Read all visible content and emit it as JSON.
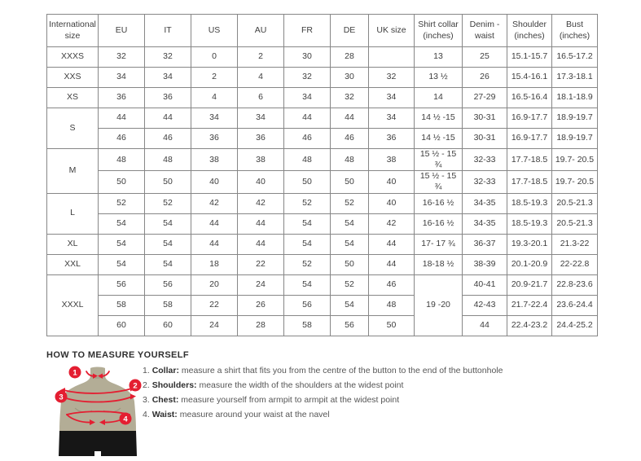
{
  "table": {
    "headers": [
      "International size",
      "EU",
      "IT",
      "US",
      "AU",
      "FR",
      "DE",
      "UK size",
      "Shirt collar (inches)",
      "Denim - waist",
      "Shoulder (inches)",
      "Bust (inches)"
    ],
    "rows": [
      {
        "cells": [
          {
            "t": "XXXS"
          },
          {
            "t": "32"
          },
          {
            "t": "32"
          },
          {
            "t": "0"
          },
          {
            "t": "2"
          },
          {
            "t": "30"
          },
          {
            "t": "28"
          },
          {
            "t": ""
          },
          {
            "t": "13"
          },
          {
            "t": "25"
          },
          {
            "t": "15.1-15.7"
          },
          {
            "t": "16.5-17.2"
          }
        ]
      },
      {
        "cells": [
          {
            "t": "XXS"
          },
          {
            "t": "34"
          },
          {
            "t": "34"
          },
          {
            "t": "2"
          },
          {
            "t": "4"
          },
          {
            "t": "32"
          },
          {
            "t": "30"
          },
          {
            "t": "32"
          },
          {
            "t": "13 ½"
          },
          {
            "t": "26"
          },
          {
            "t": "15.4-16.1"
          },
          {
            "t": "17.3-18.1"
          }
        ]
      },
      {
        "cells": [
          {
            "t": "XS"
          },
          {
            "t": "36"
          },
          {
            "t": "36"
          },
          {
            "t": "4"
          },
          {
            "t": "6"
          },
          {
            "t": "34"
          },
          {
            "t": "32"
          },
          {
            "t": "34"
          },
          {
            "t": "14"
          },
          {
            "t": "27-29"
          },
          {
            "t": "16.5-16.4"
          },
          {
            "t": "18.1-18.9"
          }
        ]
      },
      {
        "cells": [
          {
            "t": "S",
            "rs": 2
          },
          {
            "t": "44"
          },
          {
            "t": "44"
          },
          {
            "t": "34"
          },
          {
            "t": "34"
          },
          {
            "t": "44"
          },
          {
            "t": "44"
          },
          {
            "t": "34"
          },
          {
            "t": "14 ½ -15"
          },
          {
            "t": "30-31"
          },
          {
            "t": "16.9-17.7"
          },
          {
            "t": "18.9-19.7"
          }
        ]
      },
      {
        "cells": [
          {
            "t": "46"
          },
          {
            "t": "46"
          },
          {
            "t": "36"
          },
          {
            "t": "36"
          },
          {
            "t": "46"
          },
          {
            "t": "46"
          },
          {
            "t": "36"
          },
          {
            "t": "14 ½ -15"
          },
          {
            "t": "30-31"
          },
          {
            "t": "16.9-17.7"
          },
          {
            "t": "18.9-19.7"
          }
        ]
      },
      {
        "cells": [
          {
            "t": "M",
            "rs": 2
          },
          {
            "t": "48"
          },
          {
            "t": "48"
          },
          {
            "t": "38"
          },
          {
            "t": "38"
          },
          {
            "t": "48"
          },
          {
            "t": "48"
          },
          {
            "t": "38"
          },
          {
            "t": "15 ½ - 15 ¾"
          },
          {
            "t": "32-33"
          },
          {
            "t": "17.7-18.5"
          },
          {
            "t": "19.7- 20.5"
          }
        ]
      },
      {
        "cells": [
          {
            "t": "50"
          },
          {
            "t": "50"
          },
          {
            "t": "40"
          },
          {
            "t": "40"
          },
          {
            "t": "50"
          },
          {
            "t": "50"
          },
          {
            "t": "40"
          },
          {
            "t": "15 ½ - 15 ¾"
          },
          {
            "t": "32-33"
          },
          {
            "t": "17.7-18.5"
          },
          {
            "t": "19.7- 20.5"
          }
        ]
      },
      {
        "cells": [
          {
            "t": "L",
            "rs": 2
          },
          {
            "t": "52"
          },
          {
            "t": "52"
          },
          {
            "t": "42"
          },
          {
            "t": "42"
          },
          {
            "t": "52"
          },
          {
            "t": "52"
          },
          {
            "t": "40"
          },
          {
            "t": "16-16 ½"
          },
          {
            "t": "34-35"
          },
          {
            "t": "18.5-19.3"
          },
          {
            "t": "20.5-21.3"
          }
        ]
      },
      {
        "cells": [
          {
            "t": "54"
          },
          {
            "t": "54"
          },
          {
            "t": "44"
          },
          {
            "t": "44"
          },
          {
            "t": "54"
          },
          {
            "t": "54"
          },
          {
            "t": "42"
          },
          {
            "t": "16-16 ½"
          },
          {
            "t": "34-35"
          },
          {
            "t": "18.5-19.3"
          },
          {
            "t": "20.5-21.3"
          }
        ]
      },
      {
        "cells": [
          {
            "t": "XL"
          },
          {
            "t": "54"
          },
          {
            "t": "54"
          },
          {
            "t": "44"
          },
          {
            "t": "44"
          },
          {
            "t": "54"
          },
          {
            "t": "54"
          },
          {
            "t": "44"
          },
          {
            "t": "17- 17 ¾"
          },
          {
            "t": "36-37"
          },
          {
            "t": "19.3-20.1"
          },
          {
            "t": "21.3-22"
          }
        ]
      },
      {
        "cells": [
          {
            "t": "XXL"
          },
          {
            "t": "54"
          },
          {
            "t": "54"
          },
          {
            "t": "18"
          },
          {
            "t": "22"
          },
          {
            "t": "52"
          },
          {
            "t": "50"
          },
          {
            "t": "44"
          },
          {
            "t": "18-18 ½"
          },
          {
            "t": "38-39"
          },
          {
            "t": "20.1-20.9"
          },
          {
            "t": "22-22.8"
          }
        ]
      },
      {
        "cells": [
          {
            "t": "XXXL",
            "rs": 3
          },
          {
            "t": "56"
          },
          {
            "t": "56"
          },
          {
            "t": "20"
          },
          {
            "t": "24"
          },
          {
            "t": "54"
          },
          {
            "t": "52"
          },
          {
            "t": "46"
          },
          {
            "t": "19 -20",
            "rs": 3
          },
          {
            "t": "40-41"
          },
          {
            "t": "20.9-21.7"
          },
          {
            "t": "22.8-23.6"
          }
        ]
      },
      {
        "cells": [
          {
            "t": "58"
          },
          {
            "t": "58"
          },
          {
            "t": "22"
          },
          {
            "t": "26"
          },
          {
            "t": "56"
          },
          {
            "t": "54"
          },
          {
            "t": "48"
          },
          {
            "t": "42-43"
          },
          {
            "t": "21.7-22.4"
          },
          {
            "t": "23.6-24.4"
          }
        ]
      },
      {
        "cells": [
          {
            "t": "60"
          },
          {
            "t": "60"
          },
          {
            "t": "24"
          },
          {
            "t": "28"
          },
          {
            "t": "58"
          },
          {
            "t": "56"
          },
          {
            "t": "50"
          },
          {
            "t": "44"
          },
          {
            "t": "22.4-23.2"
          },
          {
            "t": "24.4-25.2"
          }
        ]
      }
    ]
  },
  "measure": {
    "heading": "HOW TO MEASURE YOURSELF",
    "steps": [
      {
        "num": "1.",
        "label": "Collar:",
        "text": "measure a shirt that fits you from the centre of the button to the end of the buttonhole"
      },
      {
        "num": "2.",
        "label": "Shoulders:",
        "text": "measure the width of the shoulders at the widest point"
      },
      {
        "num": "3.",
        "label": "Chest:",
        "text": "measure yourself from armpit to armpit at the widest point"
      },
      {
        "num": "4.",
        "label": "Waist:",
        "text": "measure around your waist at the navel"
      }
    ],
    "diagram": {
      "numbers": [
        "1",
        "2",
        "3",
        "4"
      ]
    }
  },
  "colors": {
    "accent_red": "#e41e31",
    "torso": "#b3ad96",
    "torso_contour": "#9b957e",
    "shorts": "#161616",
    "table_border": "#878787",
    "text": "#3e3e3e"
  }
}
